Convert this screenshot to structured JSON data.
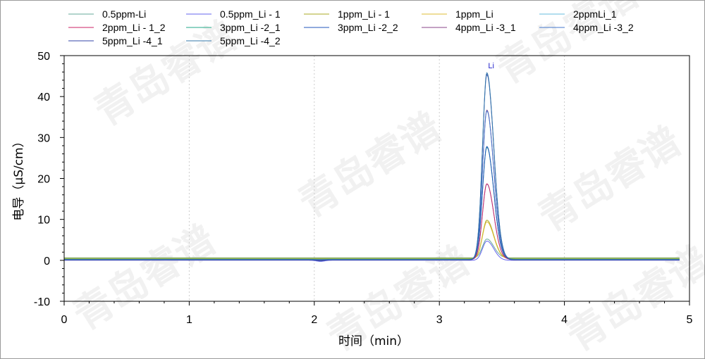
{
  "watermark": "青岛睿谱",
  "chart_data": {
    "type": "line",
    "xlabel": "时间（min）",
    "ylabel": "电导（μS/cm）",
    "xlim": [
      0,
      5
    ],
    "ylim": [
      -10,
      50
    ],
    "xticks": [
      0,
      1,
      2,
      3,
      4,
      5
    ],
    "yticks": [
      -10,
      0,
      10,
      20,
      30,
      40,
      50
    ],
    "grid": false,
    "legend_position": "top",
    "peak_retention_min": 3.38,
    "annotations": [
      {
        "text": "Li",
        "x": 3.38,
        "y": 45.5
      }
    ],
    "series": [
      {
        "name": "0.5ppm-Li",
        "color": "#66aa99",
        "peak": 4.6,
        "baseline": 0.6
      },
      {
        "name": "0.5ppm_Li - 1",
        "color": "#6666ee",
        "peak": 4.7,
        "baseline": 0.0
      },
      {
        "name": "1ppm_Li - 1",
        "color": "#aaaa22",
        "peak": 9.3,
        "baseline": 0.5
      },
      {
        "name": "1ppm_Li",
        "color": "#ddbb33",
        "peak": 9.0,
        "baseline": 0.4
      },
      {
        "name": "2ppmLi_1",
        "color": "#66bbdd",
        "peak": 18.3,
        "baseline": 0.3
      },
      {
        "name": "2ppm_Li - 1_2",
        "color": "#cc2266",
        "peak": 18.5,
        "baseline": 0.2
      },
      {
        "name": "3ppm_Li -2_1",
        "color": "#22aa88",
        "peak": 27.3,
        "baseline": 0.3
      },
      {
        "name": "3ppm_Li -2_2",
        "color": "#2255bb",
        "peak": 27.6,
        "baseline": 0.2
      },
      {
        "name": "4ppm_Li -3_1",
        "color": "#884488",
        "peak": 36.6,
        "baseline": 0.1
      },
      {
        "name": "4ppm_Li -3_2",
        "color": "#4477cc",
        "peak": 36.3,
        "baseline": 0.2
      },
      {
        "name": "5ppm_Li -4_1",
        "color": "#3344aa",
        "peak": 45.3,
        "baseline": 0.1
      },
      {
        "name": "5ppm_Li -4_2",
        "color": "#3377aa",
        "peak": 45.6,
        "baseline": 0.2
      }
    ]
  }
}
